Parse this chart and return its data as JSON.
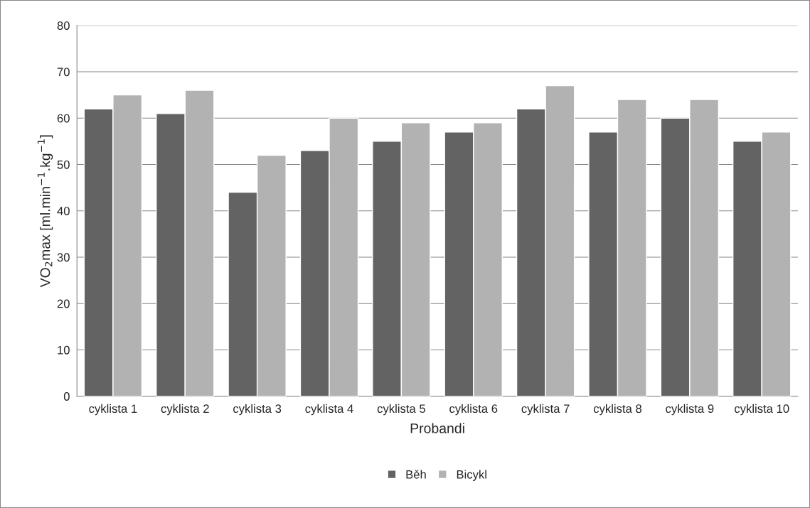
{
  "chart_data": {
    "type": "bar",
    "xlabel": "Probandi",
    "ylabel": "VO$_{2}$max [ml.min$^{−1}$.kg$^{−1}$]",
    "categories": [
      "cyklista 1",
      "cyklista 2",
      "cyklista 3",
      "cyklista 4",
      "cyklista 5",
      "cyklista 6",
      "cyklista 7",
      "cyklista 8",
      "cyklista 9",
      "cyklista 10"
    ],
    "series": [
      {
        "name": "Běh",
        "color": "#636363",
        "values": [
          62,
          61,
          44,
          53,
          55,
          57,
          62,
          57,
          60,
          55
        ]
      },
      {
        "name": "Bicykl",
        "color": "#b2b2b2",
        "values": [
          65,
          66,
          52,
          60,
          59,
          59,
          67,
          64,
          64,
          57
        ]
      }
    ],
    "ylim": [
      0,
      80
    ],
    "yticks": [
      0,
      10,
      20,
      30,
      40,
      50,
      60,
      70,
      80
    ],
    "grid": "y",
    "legend": "bottom"
  }
}
